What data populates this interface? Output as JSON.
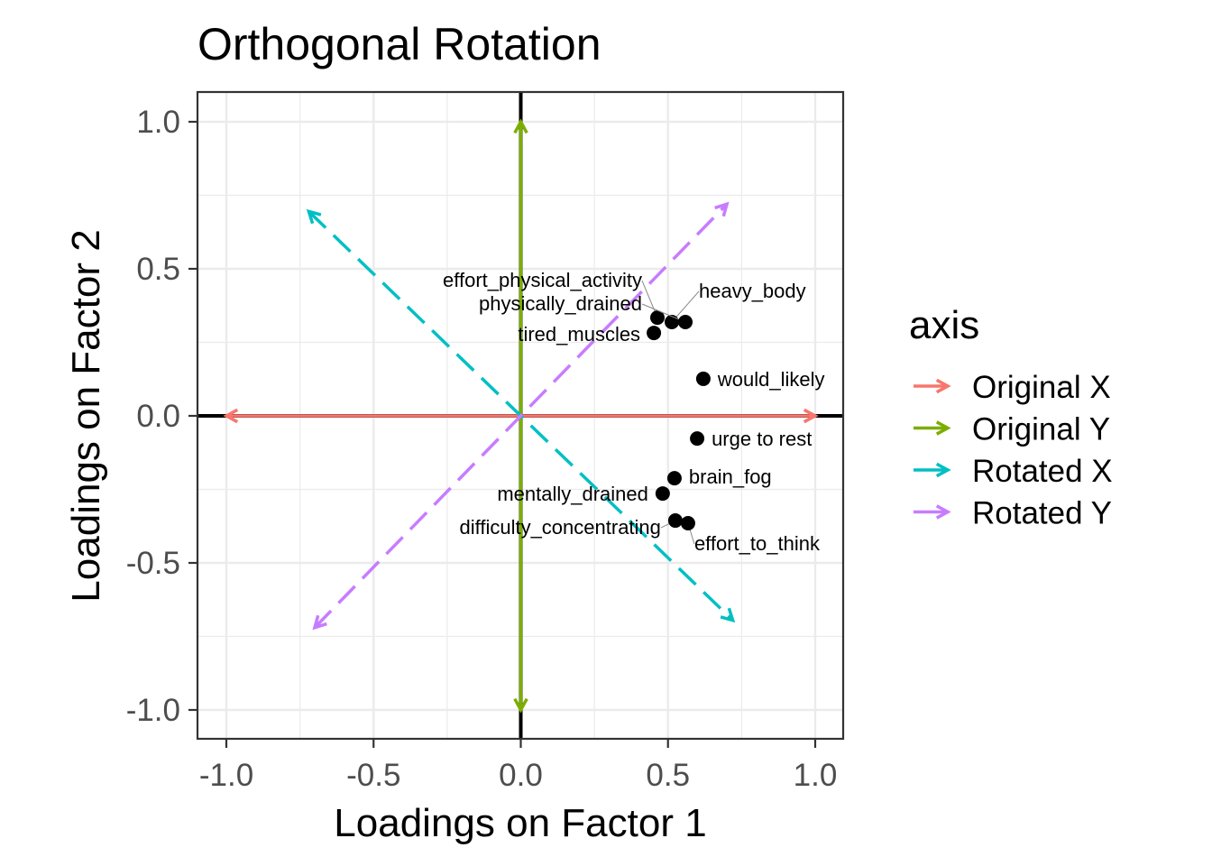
{
  "chart_data": {
    "type": "scatter",
    "title": "Orthogonal Rotation",
    "xlabel": "Loadings on Factor 1",
    "ylabel": "Loadings on Factor 2",
    "xlim": [
      -1.1,
      1.1
    ],
    "ylim": [
      -1.1,
      1.1
    ],
    "xticks": [
      -1.0,
      -0.5,
      0.0,
      0.5,
      1.0
    ],
    "yticks": [
      -1.0,
      -0.5,
      0.0,
      0.5,
      1.0
    ],
    "xtick_labels": [
      "-1.0",
      "-0.5",
      "0.0",
      "0.5",
      "1.0"
    ],
    "ytick_labels": [
      "-1.0",
      "-0.5",
      "0.0",
      "0.5",
      "1.0"
    ],
    "grid": true,
    "points": [
      {
        "label": "effort_physical_activity",
        "x": 0.464,
        "y": 0.334
      },
      {
        "label": "heavy_body",
        "x": 0.513,
        "y": 0.319
      },
      {
        "label": "physically_drained",
        "x": 0.559,
        "y": 0.319
      },
      {
        "label": "tired_muscles",
        "x": 0.452,
        "y": 0.282
      },
      {
        "label": "would_likely",
        "x": 0.62,
        "y": 0.126
      },
      {
        "label": "urge to rest",
        "x": 0.599,
        "y": -0.077
      },
      {
        "label": "brain_fog",
        "x": 0.522,
        "y": -0.212
      },
      {
        "label": "mentally_drained",
        "x": 0.482,
        "y": -0.264
      },
      {
        "label": "difficulty_concentrating",
        "x": 0.525,
        "y": -0.356
      },
      {
        "label": "effort_to_think",
        "x": 0.568,
        "y": -0.365
      }
    ],
    "legend": {
      "title": "axis",
      "placement": "right",
      "entries": [
        {
          "name": "Original X",
          "color": "#F8766D",
          "dashed": false,
          "from": [
            -1,
            0
          ],
          "to": [
            1,
            0
          ]
        },
        {
          "name": "Original Y",
          "color": "#7CAE00",
          "dashed": false,
          "from": [
            0,
            -1
          ],
          "to": [
            0,
            1
          ]
        },
        {
          "name": "Rotated X",
          "color": "#00BFC4",
          "dashed": true,
          "from": [
            -0.72,
            0.695
          ],
          "to": [
            0.72,
            -0.695
          ]
        },
        {
          "name": "Rotated Y",
          "color": "#C77CFF",
          "dashed": true,
          "from": [
            -0.7,
            -0.72
          ],
          "to": [
            0.7,
            0.72
          ]
        }
      ]
    }
  }
}
